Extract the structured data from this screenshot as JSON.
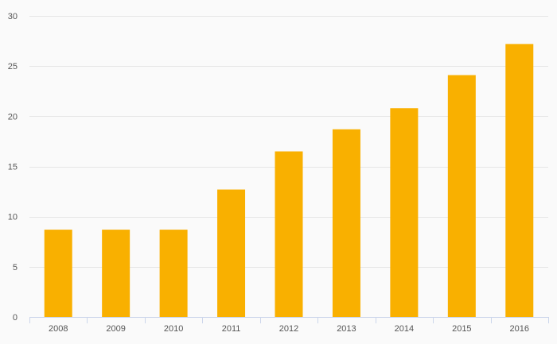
{
  "chart_data": {
    "type": "bar",
    "title": "",
    "xlabel": "",
    "ylabel": "",
    "categories": [
      "2008",
      "2009",
      "2010",
      "2011",
      "2012",
      "2013",
      "2014",
      "2015",
      "2016"
    ],
    "values": [
      8.7,
      8.7,
      8.7,
      12.7,
      16.5,
      18.7,
      20.8,
      24.1,
      27.2
    ],
    "ylim": [
      0,
      30
    ],
    "yticks": [
      0,
      5,
      10,
      15,
      20,
      25,
      30
    ],
    "grid": true,
    "legend": "none",
    "colors": {
      "bar": "#F9B000",
      "grid": "#e6e6e6",
      "axis": "#ccd6eb",
      "background": "#fafafa",
      "label": "#555555"
    }
  }
}
